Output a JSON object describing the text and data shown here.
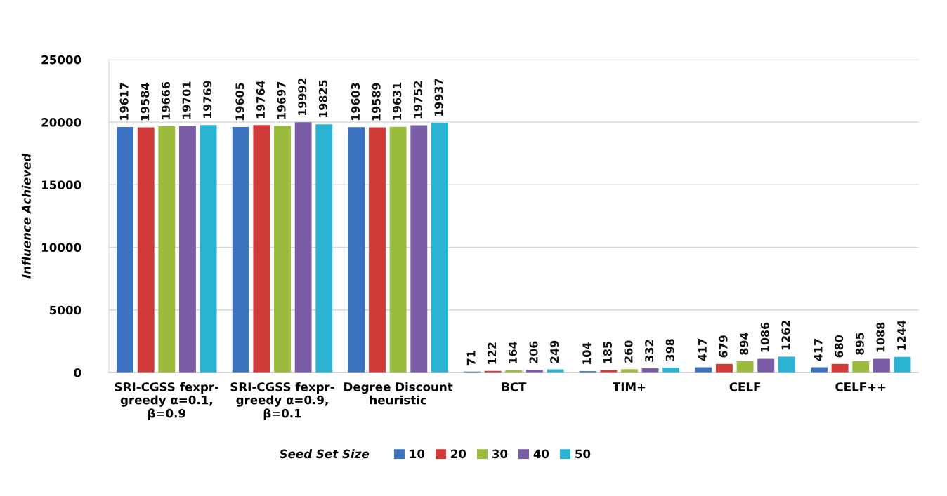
{
  "chart_data": {
    "type": "bar",
    "ylabel": "Influence Achieved",
    "legend_title": "Seed Set Size",
    "categories": [
      "SRI-CGSS fexpr-\ngreedy α=0.1,\nβ=0.9",
      "SRI-CGSS fexpr-\ngreedy α=0.9,\nβ=0.1",
      "Degree Discount\nheuristic",
      "BCT",
      "TIM+",
      "CELF",
      "CELF++"
    ],
    "series": [
      {
        "name": "10",
        "color": "#3b73c0",
        "values": [
          19617,
          19605,
          19603,
          71,
          104,
          417,
          417
        ]
      },
      {
        "name": "20",
        "color": "#cf3a38",
        "values": [
          19584,
          19764,
          19589,
          122,
          185,
          679,
          680
        ]
      },
      {
        "name": "30",
        "color": "#9abb3c",
        "values": [
          19666,
          19697,
          19631,
          164,
          260,
          894,
          895
        ]
      },
      {
        "name": "40",
        "color": "#7a5ba6",
        "values": [
          19701,
          19992,
          19752,
          206,
          332,
          1086,
          1088
        ]
      },
      {
        "name": "50",
        "color": "#2bb3d3",
        "values": [
          19769,
          19825,
          19937,
          249,
          398,
          1262,
          1244
        ]
      }
    ],
    "ylim": [
      0,
      25000
    ],
    "yticks": [
      0,
      5000,
      10000,
      15000,
      20000,
      25000
    ],
    "grid": "y",
    "legend": "bottom",
    "data_labels": true
  }
}
